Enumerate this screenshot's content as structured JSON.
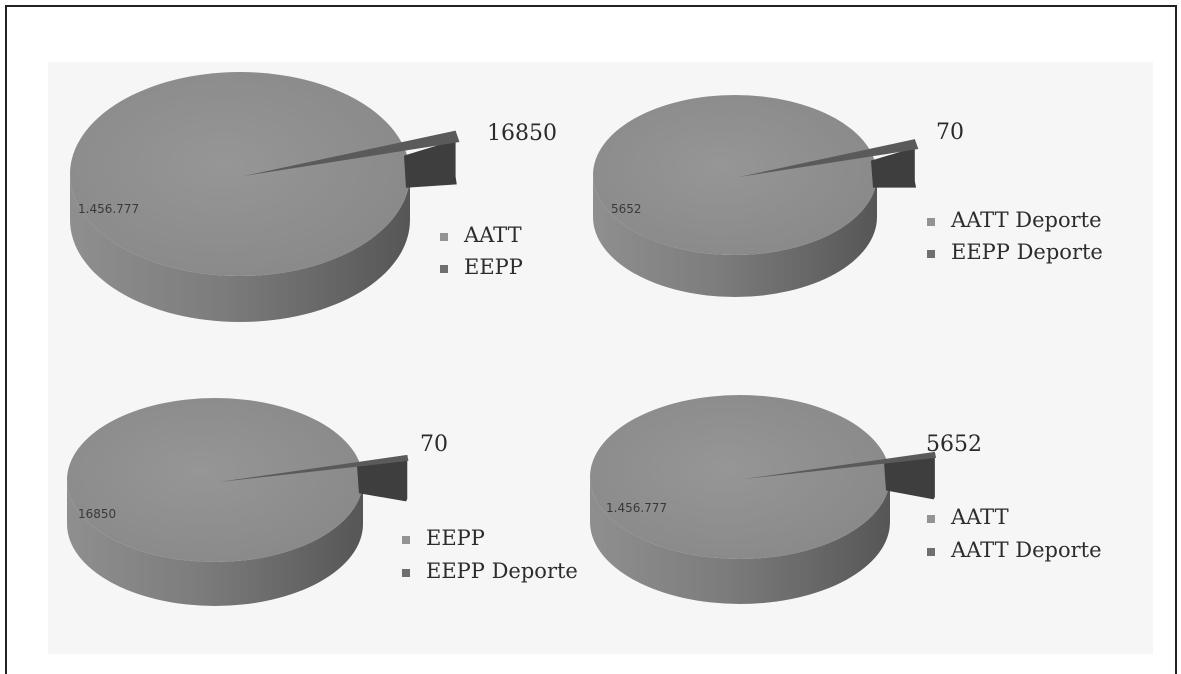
{
  "colors": {
    "pie_top": "#8e8e8e",
    "pie_side_light": "#8a8a8a",
    "pie_side_dark": "#5e5e5e",
    "slice_top": "#5a5a5a",
    "slice_side": "#3e3e3e",
    "legend_marker_a": "#939393",
    "legend_marker_b": "#6f6f6f",
    "panel_bg": "#f6f6f6",
    "border": "#222222"
  },
  "chart_data": [
    {
      "type": "pie",
      "slices": [
        {
          "name": "AATT",
          "value": 1456777,
          "label": "1.456.777"
        },
        {
          "name": "EEPP",
          "value": 16850,
          "label": "16850"
        }
      ],
      "legend": [
        "AATT",
        "EEPP"
      ]
    },
    {
      "type": "pie",
      "slices": [
        {
          "name": "AATT Deporte",
          "value": 5652,
          "label": "5652"
        },
        {
          "name": "EEPP Deporte",
          "value": 70,
          "label": "70"
        }
      ],
      "legend": [
        "AATT Deporte",
        "EEPP Deporte"
      ]
    },
    {
      "type": "pie",
      "slices": [
        {
          "name": "EEPP",
          "value": 16850,
          "label": "16850"
        },
        {
          "name": "EEPP Deporte",
          "value": 70,
          "label": "70"
        }
      ],
      "legend": [
        "EEPP",
        "EEPP Deporte"
      ]
    },
    {
      "type": "pie",
      "slices": [
        {
          "name": "AATT",
          "value": 1456777,
          "label": "1.456.777"
        },
        {
          "name": "AATT Deporte",
          "value": 5652,
          "label": "5652"
        }
      ],
      "legend": [
        "AATT",
        "AATT Deporte"
      ]
    }
  ]
}
